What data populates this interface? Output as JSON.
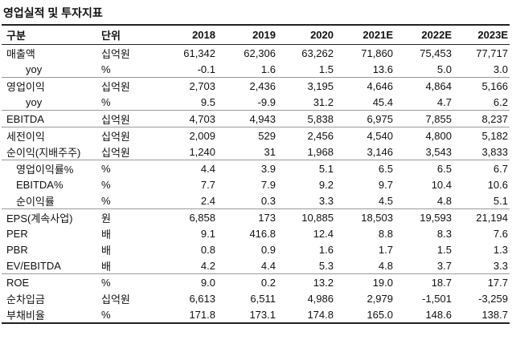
{
  "title": "영업실적 및 투자지표",
  "table": {
    "header": [
      "구분",
      "단위",
      "2018",
      "2019",
      "2020",
      "2021E",
      "2022E",
      "2023E"
    ],
    "groups": [
      {
        "rows": [
          [
            "매출액",
            "십억원",
            "61,342",
            "62,306",
            "63,262",
            "71,860",
            "75,453",
            "77,717"
          ],
          [
            "yoy",
            "%",
            "-0.1",
            "1.6",
            "1.5",
            "13.6",
            "5.0",
            "3.0"
          ]
        ]
      },
      {
        "rows": [
          [
            "영업이익",
            "십억원",
            "2,703",
            "2,436",
            "3,195",
            "4,646",
            "4,864",
            "5,166"
          ],
          [
            "yoy",
            "%",
            "9.5",
            "-9.9",
            "31.2",
            "45.4",
            "4.7",
            "6.2"
          ]
        ]
      },
      {
        "rows": [
          [
            "EBITDA",
            "십억원",
            "4,703",
            "4,943",
            "5,838",
            "6,975",
            "7,855",
            "8,237"
          ]
        ]
      },
      {
        "rows": [
          [
            "세전이익",
            "십억원",
            "2,009",
            "529",
            "2,456",
            "4,540",
            "4,800",
            "5,182"
          ],
          [
            "순이익(지배주주)",
            "십억원",
            "1,240",
            "31",
            "1,968",
            "3,146",
            "3,543",
            "3,833"
          ]
        ]
      },
      {
        "rows": [
          [
            "영업이익률%",
            "%",
            "4.4",
            "3.9",
            "5.1",
            "6.5",
            "6.5",
            "6.7"
          ],
          [
            "EBITDA%",
            "%",
            "7.7",
            "7.9",
            "9.2",
            "9.7",
            "10.4",
            "10.6"
          ],
          [
            "순이익률",
            "%",
            "2.4",
            "0.3",
            "3.3",
            "4.5",
            "4.8",
            "5.1"
          ]
        ]
      },
      {
        "rows": [
          [
            "EPS(계속사업)",
            "원",
            "6,858",
            "173",
            "10,885",
            "18,503",
            "19,593",
            "21,194"
          ],
          [
            "PER",
            "배",
            "9.1",
            "416.8",
            "12.4",
            "8.8",
            "8.3",
            "7.6"
          ],
          [
            "PBR",
            "배",
            "0.8",
            "0.9",
            "1.6",
            "1.7",
            "1.5",
            "1.3"
          ],
          [
            "EV/EBITDA",
            "배",
            "4.2",
            "4.4",
            "5.3",
            "4.8",
            "3.7",
            "3.3"
          ]
        ]
      },
      {
        "rows": [
          [
            "ROE",
            "%",
            "9.0",
            "0.2",
            "13.2",
            "19.0",
            "18.7",
            "17.7"
          ],
          [
            "순차입금",
            "십억원",
            "6,613",
            "6,511",
            "4,986",
            "2,979",
            "-1,501",
            "-3,259"
          ],
          [
            "부채비율",
            "%",
            "171.8",
            "173.1",
            "174.8",
            "165.0",
            "148.6",
            "138.7"
          ]
        ]
      }
    ]
  }
}
